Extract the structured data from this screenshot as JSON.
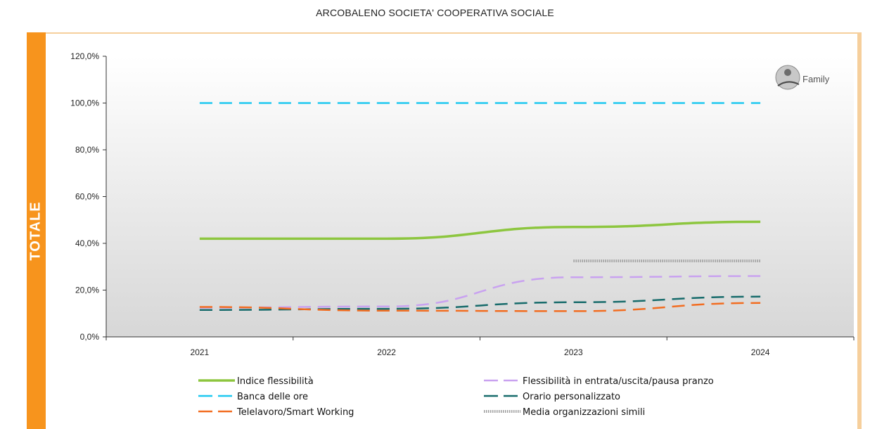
{
  "page": {
    "title": "ARCOBALENO SOCIETA' COOPERATIVA SOCIALE",
    "side_label": "TOTALE",
    "logo_text": "Family"
  },
  "chart_data": {
    "type": "line",
    "title": "ARCOBALENO SOCIETA' COOPERATIVA SOCIALE",
    "xlabel": "",
    "ylabel": "",
    "categories": [
      "2021",
      "2022",
      "2023",
      "2024"
    ],
    "ylim": [
      0,
      120
    ],
    "yticks": [
      0,
      20,
      40,
      60,
      80,
      100,
      120
    ],
    "ytick_labels": [
      "0,0%",
      "20,0%",
      "40,0%",
      "60,0%",
      "80,0%",
      "100,0%",
      "120,0%"
    ],
    "grid": false,
    "legend_position": "bottom",
    "series": [
      {
        "name": "Indice flessibilità",
        "values": [
          42,
          42,
          47,
          49.2
        ],
        "color": "#8dc63f",
        "style": "solid"
      },
      {
        "name": "Flessibilità in entrata/uscita/pausa pranzo",
        "values": [
          12.5,
          13,
          25.5,
          26
        ],
        "color": "#c9a2f0",
        "style": "dashed"
      },
      {
        "name": "Banca delle ore",
        "values": [
          100,
          100,
          100,
          100
        ],
        "color": "#1ec8f0",
        "style": "dashed"
      },
      {
        "name": "Orario personalizzato",
        "values": [
          11.5,
          12,
          14.8,
          17.2
        ],
        "color": "#176b6b",
        "style": "dashed"
      },
      {
        "name": "Telelavoro/Smart Working",
        "values": [
          12.8,
          11.2,
          11,
          14.5
        ],
        "color": "#f26d21",
        "style": "dashed"
      },
      {
        "name": "Media organizzazioni simili",
        "values": [
          null,
          null,
          32.5,
          32.5
        ],
        "color": "#9e9e9e",
        "style": "dotted"
      }
    ]
  }
}
